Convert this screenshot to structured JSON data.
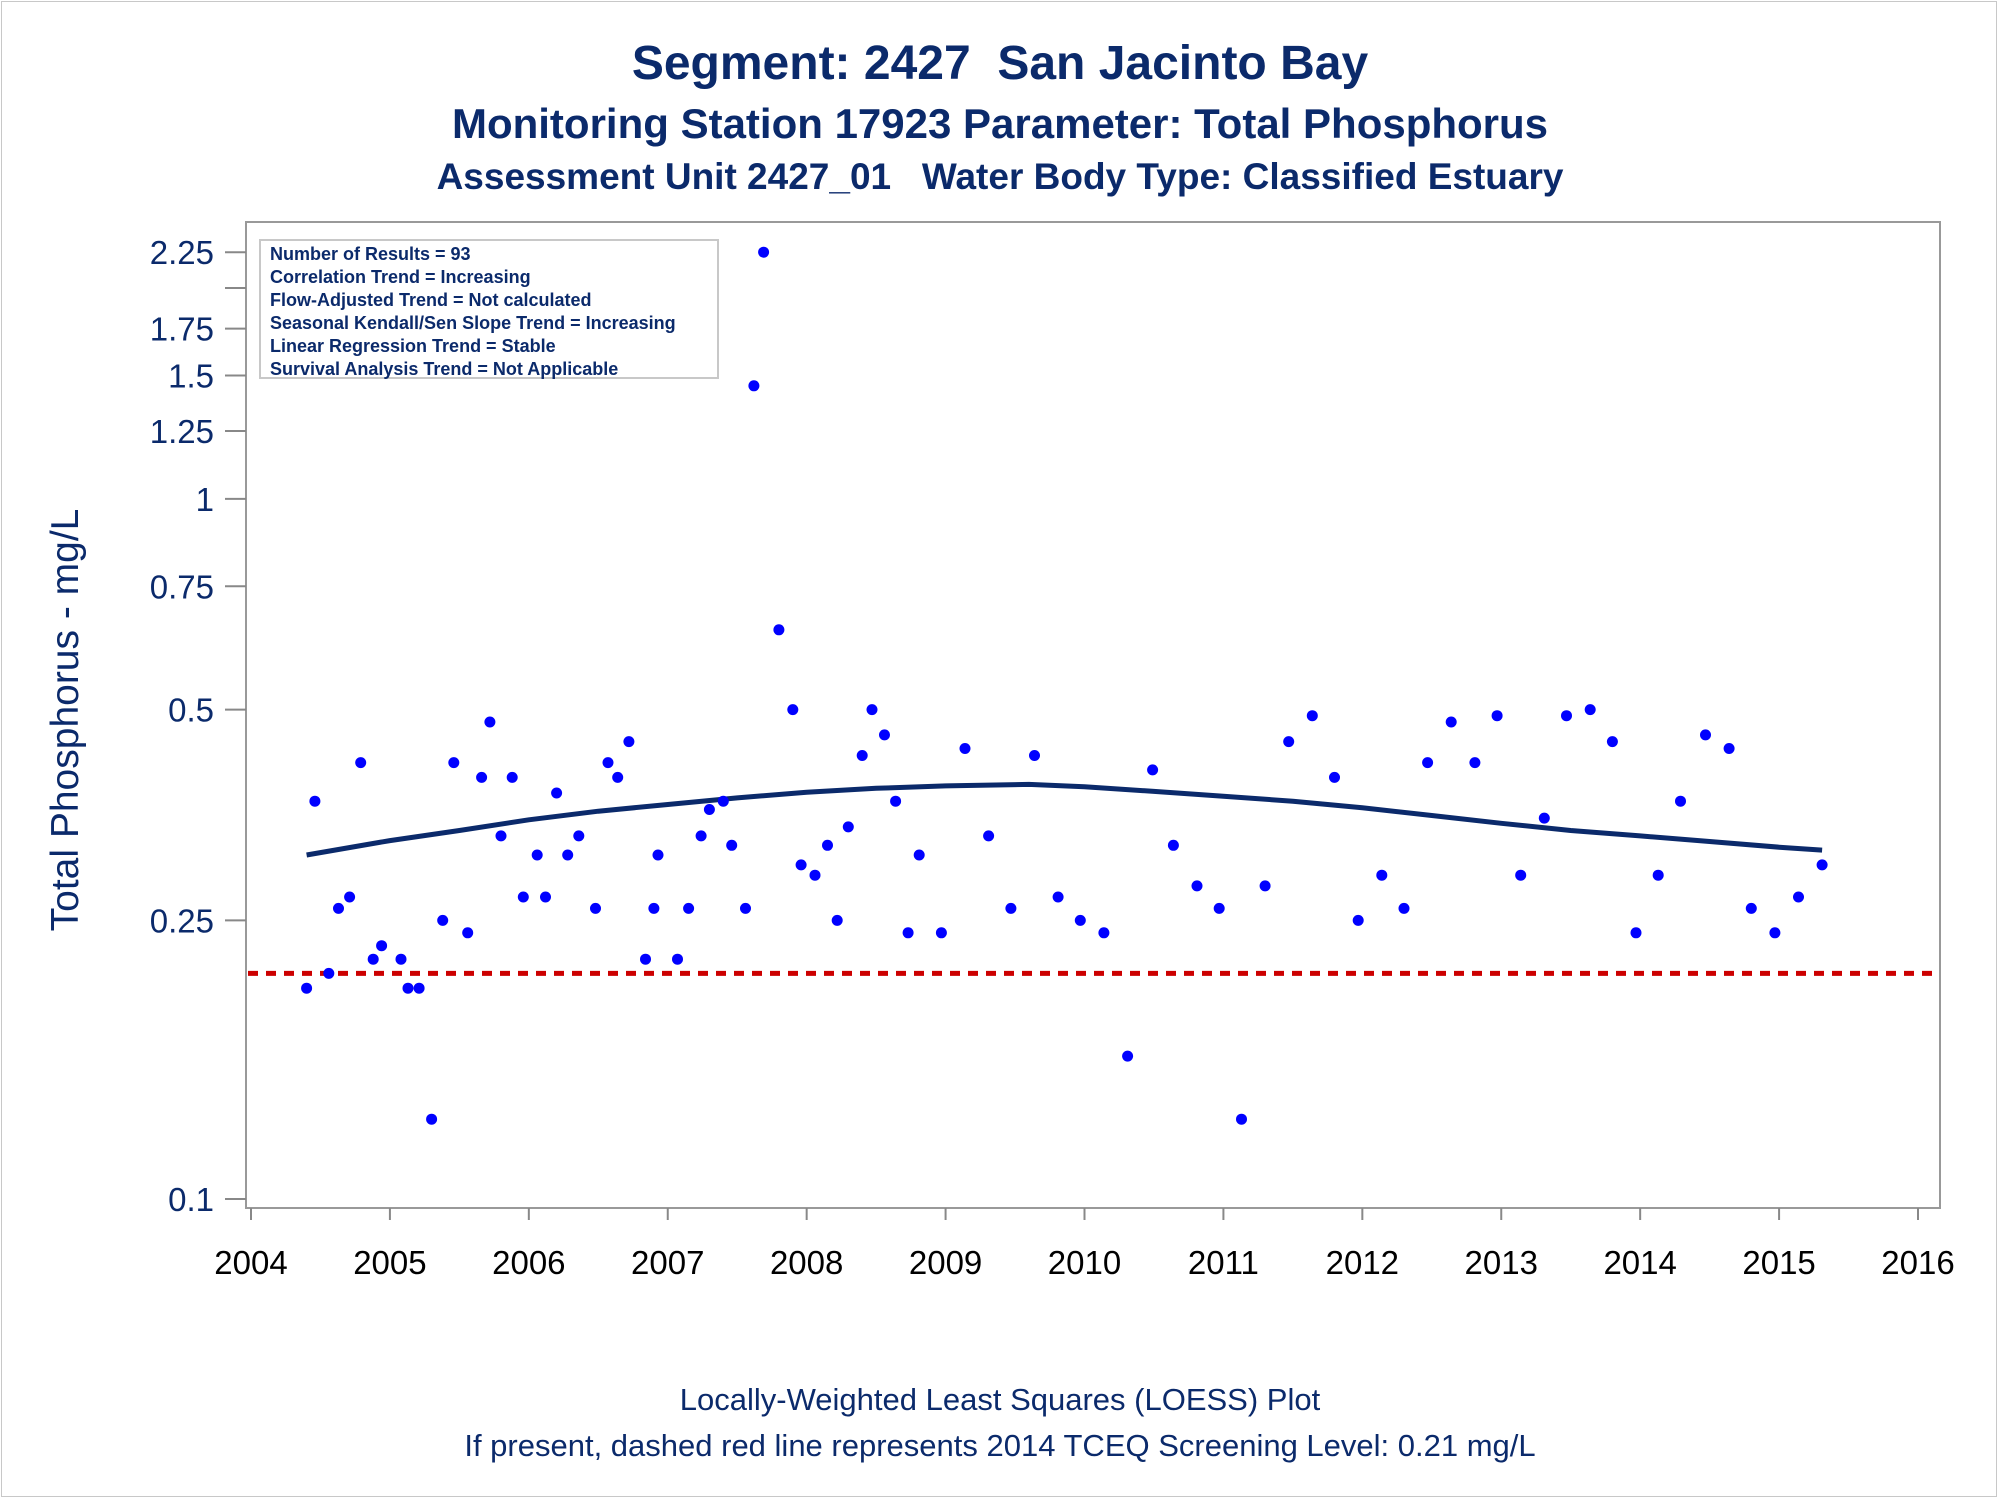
{
  "header": {
    "title": "Segment: 2427  San Jacinto Bay",
    "subtitle": "Monitoring Station 17923 Parameter: Total Phosphorus",
    "subtitle2": "Assessment Unit 2427_01   Water Body Type: Classified Estuary"
  },
  "stats_box": {
    "lines": [
      "Number of Results = 93",
      "Correlation Trend = Increasing",
      "Flow-Adjusted Trend = Not calculated",
      "Seasonal Kendall/Sen Slope Trend = Increasing",
      "Linear Regression Trend = Stable",
      "Survival Analysis Trend = Not Applicable"
    ]
  },
  "footer": {
    "line1": "Locally-Weighted Least Squares (LOESS) Plot",
    "line2": "If present, dashed red line represents 2014 TCEQ Screening Level: 0.21 mg/L"
  },
  "colors": {
    "text": "#0b2a6b",
    "points": "#0000ff",
    "loess": "#0b2a6b",
    "screening_line": "#cc0000",
    "axis": "#888888"
  },
  "chart_data": {
    "type": "scatter",
    "ylabel": "Total Phosphorus - mg/L",
    "xlabel": "",
    "y_scale": "log",
    "ylim": [
      0.1,
      2.35
    ],
    "xlim": [
      2004,
      2016
    ],
    "x_ticks": [
      2004,
      2005,
      2006,
      2007,
      2008,
      2009,
      2010,
      2011,
      2012,
      2013,
      2014,
      2015,
      2016
    ],
    "y_ticks": [
      0.1,
      0.25,
      0.5,
      0.75,
      1,
      1.25,
      1.5,
      1.75,
      2.25
    ],
    "y_tick_labels": [
      "0.1",
      "0.25",
      "0.5",
      "0.75",
      "1",
      "1.25",
      "1.5",
      "1.75",
      "2.25"
    ],
    "y_minor_ticks": [
      2
    ],
    "screening_level": 0.21,
    "points": [
      [
        2004.4,
        0.2
      ],
      [
        2004.46,
        0.37
      ],
      [
        2004.56,
        0.21
      ],
      [
        2004.63,
        0.26
      ],
      [
        2004.71,
        0.27
      ],
      [
        2004.79,
        0.42
      ],
      [
        2004.88,
        0.22
      ],
      [
        2004.94,
        0.23
      ],
      [
        2005.08,
        0.22
      ],
      [
        2005.13,
        0.2
      ],
      [
        2005.21,
        0.2
      ],
      [
        2005.3,
        0.13
      ],
      [
        2005.38,
        0.25
      ],
      [
        2005.46,
        0.42
      ],
      [
        2005.56,
        0.24
      ],
      [
        2005.66,
        0.4
      ],
      [
        2005.72,
        0.48
      ],
      [
        2005.8,
        0.33
      ],
      [
        2005.88,
        0.4
      ],
      [
        2005.96,
        0.27
      ],
      [
        2006.06,
        0.31
      ],
      [
        2006.12,
        0.27
      ],
      [
        2006.2,
        0.38
      ],
      [
        2006.28,
        0.31
      ],
      [
        2006.36,
        0.33
      ],
      [
        2006.48,
        0.26
      ],
      [
        2006.57,
        0.42
      ],
      [
        2006.64,
        0.4
      ],
      [
        2006.72,
        0.45
      ],
      [
        2006.84,
        0.22
      ],
      [
        2006.9,
        0.26
      ],
      [
        2006.93,
        0.31
      ],
      [
        2007.07,
        0.22
      ],
      [
        2007.15,
        0.26
      ],
      [
        2007.24,
        0.33
      ],
      [
        2007.3,
        0.36
      ],
      [
        2007.4,
        0.37
      ],
      [
        2007.46,
        0.32
      ],
      [
        2007.56,
        0.26
      ],
      [
        2007.62,
        1.45
      ],
      [
        2007.69,
        2.25
      ],
      [
        2007.8,
        0.65
      ],
      [
        2007.9,
        0.5
      ],
      [
        2007.96,
        0.3
      ],
      [
        2008.06,
        0.29
      ],
      [
        2008.15,
        0.32
      ],
      [
        2008.22,
        0.25
      ],
      [
        2008.3,
        0.34
      ],
      [
        2008.4,
        0.43
      ],
      [
        2008.47,
        0.5
      ],
      [
        2008.56,
        0.46
      ],
      [
        2008.64,
        0.37
      ],
      [
        2008.73,
        0.24
      ],
      [
        2008.81,
        0.31
      ],
      [
        2008.97,
        0.24
      ],
      [
        2009.14,
        0.44
      ],
      [
        2009.31,
        0.33
      ],
      [
        2009.47,
        0.26
      ],
      [
        2009.64,
        0.43
      ],
      [
        2009.81,
        0.27
      ],
      [
        2009.97,
        0.25
      ],
      [
        2010.14,
        0.24
      ],
      [
        2010.31,
        0.16
      ],
      [
        2010.49,
        0.41
      ],
      [
        2010.64,
        0.32
      ],
      [
        2010.81,
        0.28
      ],
      [
        2010.97,
        0.26
      ],
      [
        2011.13,
        0.13
      ],
      [
        2011.3,
        0.28
      ],
      [
        2011.47,
        0.45
      ],
      [
        2011.64,
        0.49
      ],
      [
        2011.8,
        0.4
      ],
      [
        2011.97,
        0.25
      ],
      [
        2012.14,
        0.29
      ],
      [
        2012.3,
        0.26
      ],
      [
        2012.47,
        0.42
      ],
      [
        2012.64,
        0.48
      ],
      [
        2012.81,
        0.42
      ],
      [
        2012.97,
        0.49
      ],
      [
        2013.14,
        0.29
      ],
      [
        2013.31,
        0.35
      ],
      [
        2013.47,
        0.49
      ],
      [
        2013.64,
        0.5
      ],
      [
        2013.8,
        0.45
      ],
      [
        2013.97,
        0.24
      ],
      [
        2014.13,
        0.29
      ],
      [
        2014.29,
        0.37
      ],
      [
        2014.47,
        0.46
      ],
      [
        2014.64,
        0.44
      ],
      [
        2014.8,
        0.26
      ],
      [
        2014.97,
        0.24
      ],
      [
        2015.14,
        0.27
      ],
      [
        2015.31,
        0.3
      ]
    ],
    "loess": [
      [
        2004.4,
        0.31
      ],
      [
        2005.0,
        0.325
      ],
      [
        2005.5,
        0.336
      ],
      [
        2006.0,
        0.348
      ],
      [
        2006.5,
        0.358
      ],
      [
        2007.0,
        0.366
      ],
      [
        2007.5,
        0.374
      ],
      [
        2008.0,
        0.381
      ],
      [
        2008.5,
        0.386
      ],
      [
        2009.0,
        0.389
      ],
      [
        2009.6,
        0.391
      ],
      [
        2010.0,
        0.388
      ],
      [
        2010.5,
        0.382
      ],
      [
        2011.0,
        0.376
      ],
      [
        2011.5,
        0.37
      ],
      [
        2012.0,
        0.362
      ],
      [
        2012.5,
        0.353
      ],
      [
        2013.0,
        0.344
      ],
      [
        2013.5,
        0.336
      ],
      [
        2014.0,
        0.33
      ],
      [
        2014.5,
        0.324
      ],
      [
        2015.0,
        0.318
      ],
      [
        2015.31,
        0.315
      ]
    ]
  }
}
